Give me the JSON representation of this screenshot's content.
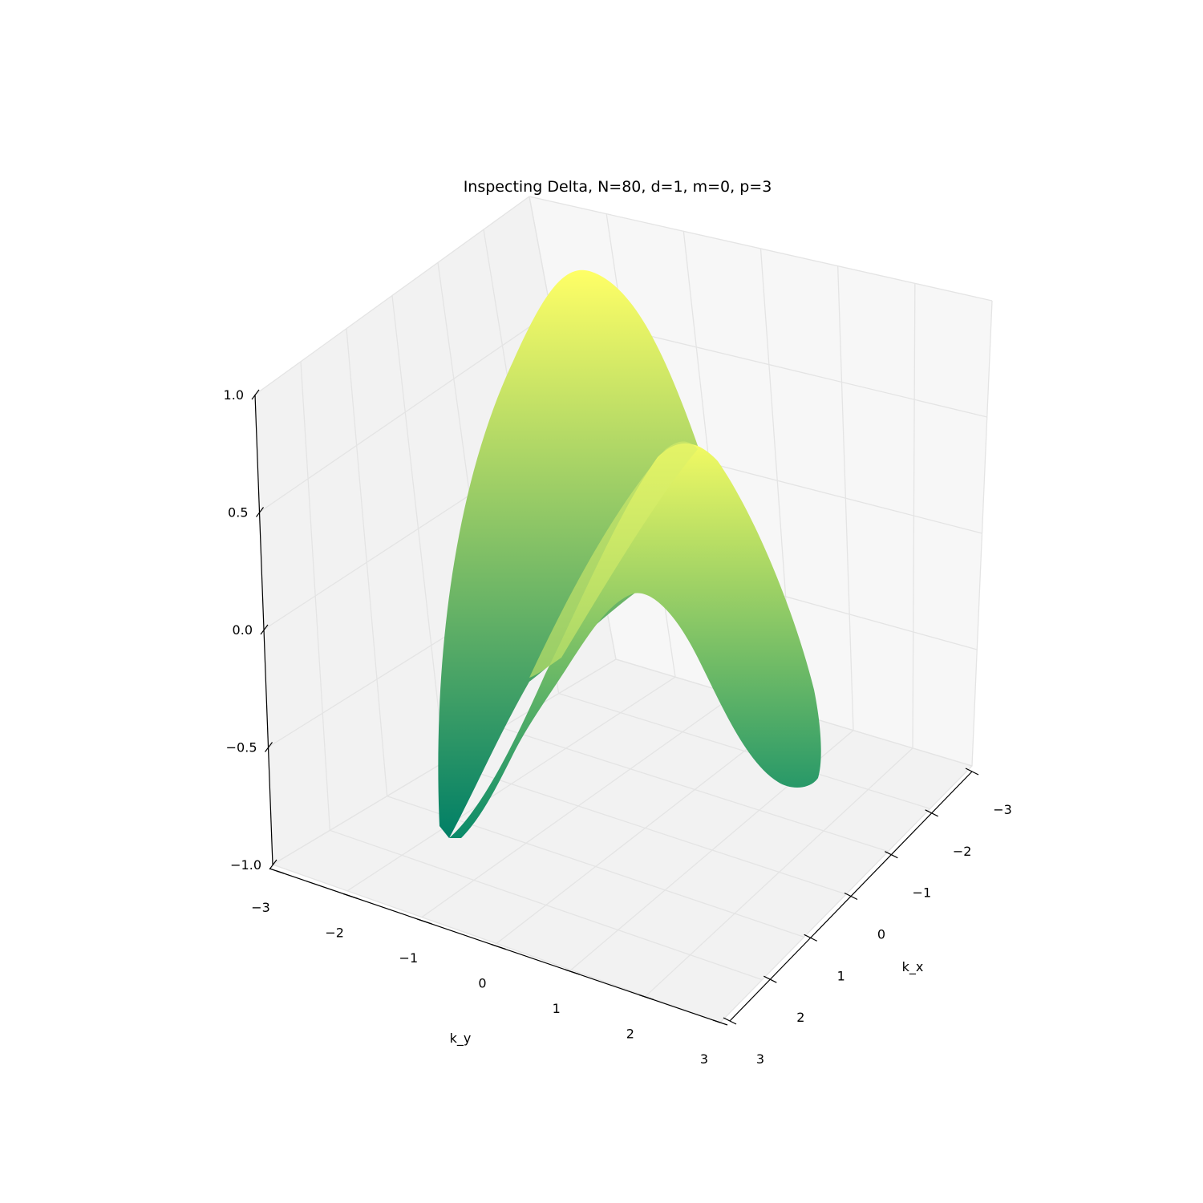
{
  "chart_data": {
    "type": "surface3d",
    "title": "Inspecting Delta, N=80, d=1, m=0, p=3",
    "xlabel": "k_x",
    "ylabel": "k_y",
    "zlabel": "",
    "xlim": [
      -3,
      3
    ],
    "ylim": [
      -3,
      3
    ],
    "zlim": [
      -1.0,
      1.0
    ],
    "x_ticks": [
      "−3",
      "−2",
      "−1",
      "0",
      "1",
      "2",
      "3"
    ],
    "y_ticks": [
      "−3",
      "−2",
      "−1",
      "0",
      "1",
      "2",
      "3"
    ],
    "z_ticks": [
      "−1.0",
      "−0.5",
      "0.0",
      "0.5",
      "1.0"
    ],
    "z_tick_values": [
      -1.0,
      -0.5,
      0.0,
      0.5,
      1.0
    ],
    "surface": {
      "description": "two saddle-shaped lobes",
      "peak_values": [
        0.95,
        0.95
      ],
      "min_values": [
        -0.85,
        -0.6
      ]
    },
    "colormap": [
      "#007f66",
      "#ffff66"
    ],
    "grid": true
  }
}
